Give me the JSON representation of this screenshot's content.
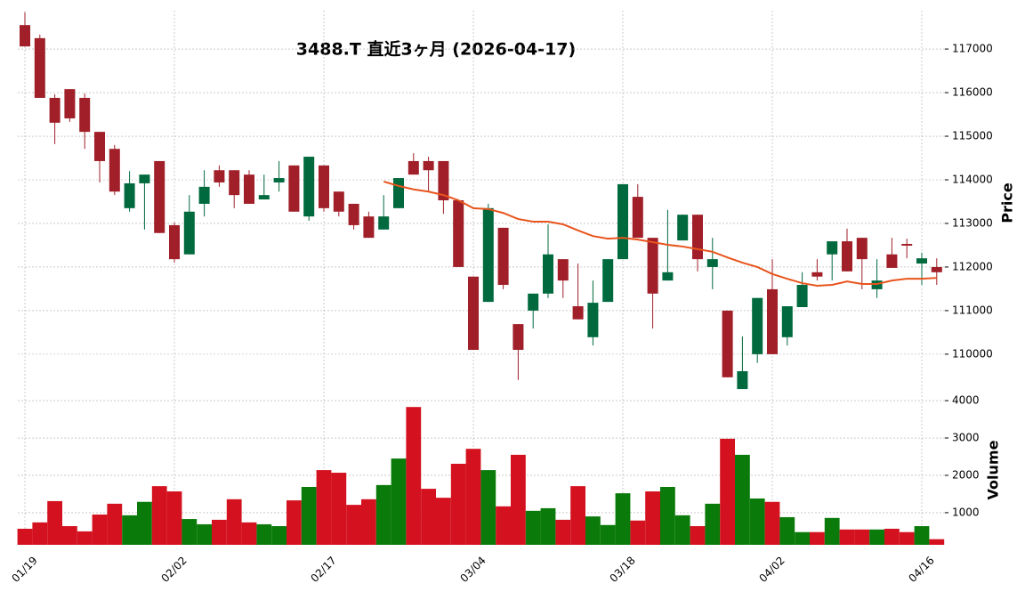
{
  "chart_data": {
    "type": "candlestick",
    "title": "3488.T  直近3ヶ月  (2026-04-17)",
    "categories": [
      "01/19",
      null,
      null,
      null,
      null,
      null,
      null,
      null,
      null,
      null,
      "02/02",
      null,
      null,
      null,
      null,
      null,
      null,
      null,
      null,
      null,
      "02/17",
      null,
      null,
      null,
      null,
      null,
      null,
      null,
      null,
      null,
      "03/04",
      null,
      null,
      null,
      null,
      null,
      null,
      null,
      null,
      null,
      "03/18",
      null,
      null,
      null,
      null,
      null,
      null,
      null,
      null,
      null,
      "04/02",
      null,
      null,
      null,
      null,
      null,
      null,
      null,
      null,
      null,
      "04/16",
      null
    ],
    "open": [
      117550,
      117250,
      115880,
      116080,
      115880,
      115100,
      114710,
      113350,
      113920,
      114430,
      112960,
      112290,
      113450,
      114220,
      114220,
      114120,
      113550,
      113940,
      114330,
      113160,
      114330,
      113730,
      113450,
      113160,
      112860,
      113350,
      114430,
      114430,
      114430,
      113530,
      111780,
      111200,
      112900,
      110690,
      111000,
      111390,
      112180,
      111100,
      110390,
      111200,
      112180,
      113610,
      112670,
      111690,
      112610,
      113200,
      112000,
      111000,
      109200,
      110000,
      111490,
      110390,
      111080,
      111880,
      112290,
      112590,
      112670,
      111490,
      112290,
      112530,
      112080,
      112000
    ],
    "high": [
      117840,
      117330,
      115960,
      116080,
      115980,
      115100,
      114800,
      114200,
      114120,
      114430,
      113020,
      113650,
      114220,
      114330,
      114220,
      114220,
      114120,
      114430,
      114330,
      114530,
      114330,
      113730,
      113450,
      113270,
      113650,
      114040,
      114610,
      114530,
      114430,
      113530,
      111780,
      113450,
      112900,
      110690,
      111390,
      112980,
      112180,
      112080,
      111690,
      112180,
      113900,
      113900,
      112670,
      113310,
      113200,
      113200,
      112670,
      111000,
      110410,
      111290,
      112180,
      111100,
      111880,
      112180,
      112590,
      112880,
      112670,
      112180,
      112670,
      112650,
      112330,
      112200
    ],
    "low": [
      117060,
      115880,
      114820,
      115330,
      114710,
      113940,
      113650,
      113270,
      112860,
      112780,
      112100,
      112290,
      113160,
      113840,
      113350,
      113450,
      113550,
      113730,
      113270,
      113060,
      113270,
      113160,
      112860,
      112670,
      112860,
      113350,
      114120,
      113730,
      113220,
      112000,
      110100,
      111200,
      111490,
      109410,
      110590,
      111290,
      111290,
      110800,
      110200,
      111200,
      112180,
      112670,
      110590,
      111690,
      112610,
      111900,
      111490,
      109470,
      109200,
      109800,
      110000,
      110200,
      111080,
      111690,
      111690,
      111900,
      111490,
      111290,
      111980,
      112200,
      111590,
      111590
    ],
    "close": [
      117060,
      115880,
      115310,
      115410,
      115100,
      114430,
      113730,
      113920,
      114120,
      112780,
      112180,
      113270,
      113840,
      113940,
      113650,
      113450,
      113650,
      114040,
      113270,
      114530,
      113350,
      113270,
      112960,
      112670,
      113160,
      114040,
      114120,
      114220,
      113530,
      112000,
      110100,
      113350,
      111590,
      110100,
      111390,
      112290,
      111690,
      110800,
      111180,
      112180,
      113900,
      112670,
      111390,
      111880,
      113200,
      112180,
      112180,
      109470,
      109610,
      111290,
      110000,
      111100,
      111590,
      111780,
      112590,
      111900,
      112180,
      111690,
      111980,
      112490,
      112200,
      111880
    ],
    "up_color": "#006a3e",
    "down_color": "#a01f28",
    "ma": {
      "color": "#e8541c",
      "values": [
        null,
        null,
        null,
        null,
        null,
        null,
        null,
        null,
        null,
        null,
        null,
        null,
        null,
        null,
        null,
        null,
        null,
        null,
        null,
        null,
        null,
        null,
        null,
        null,
        113960,
        113860,
        113780,
        113730,
        113650,
        113530,
        113350,
        113330,
        113240,
        113100,
        113040,
        113040,
        112980,
        112840,
        112710,
        112650,
        112670,
        112630,
        112570,
        112510,
        112470,
        112410,
        112350,
        112220,
        112100,
        112000,
        111840,
        111730,
        111630,
        111570,
        111590,
        111670,
        111610,
        111610,
        111690,
        111730,
        111730,
        111750
      ]
    },
    "ylabel": "Price",
    "ylim": [
      109140,
      117880
    ],
    "yticks": [
      110000,
      111000,
      112000,
      113000,
      114000,
      115000,
      116000,
      117000
    ],
    "grid": true,
    "volume": {
      "ylabel": "Volume",
      "values": [
        570,
        740,
        1310,
        640,
        500,
        950,
        1240,
        930,
        1290,
        1710,
        1570,
        830,
        690,
        810,
        1360,
        740,
        690,
        640,
        1330,
        1690,
        2140,
        2070,
        1210,
        1360,
        1740,
        2450,
        3830,
        1640,
        1400,
        2310,
        2710,
        2140,
        1170,
        2550,
        1050,
        1120,
        810,
        1710,
        900,
        670,
        1520,
        790,
        1570,
        1690,
        930,
        640,
        1240,
        2980,
        2550,
        1380,
        1290,
        880,
        480,
        480,
        860,
        550,
        550,
        550,
        570,
        480,
        640,
        290
      ],
      "up_color": "#0a7a0a",
      "down_color": "#d4121f",
      "ylim": [
        140,
        4240
      ],
      "yticks": [
        1000,
        2000,
        3000,
        4000
      ]
    }
  }
}
